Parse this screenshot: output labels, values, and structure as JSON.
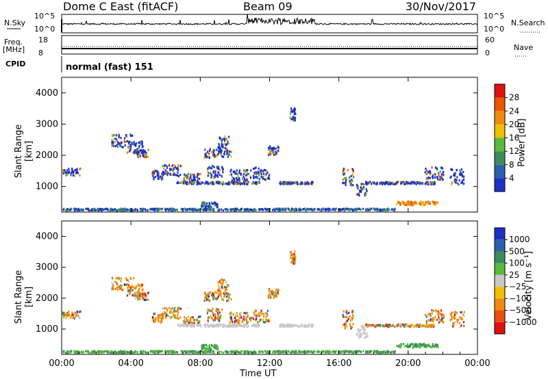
{
  "header": {
    "station": "Dome C East (fitACF)",
    "beam": "Beam 09",
    "date": "30/Nov/2017"
  },
  "strip_labels": {
    "nsky": "N.Sky",
    "nsky_hi": "10^5",
    "nsky_lo": "10^0",
    "nsearch": "N.Search",
    "nsearch_hi": "10^5",
    "nsearch_lo": "10^0",
    "freq": "Freq.",
    "freq_unit": "[MHz]",
    "freq_hi": "18",
    "freq_lo": "8",
    "nave": "Nave",
    "nave_hi": "60",
    "nave_lo": "0",
    "cpid": "CPID",
    "cpid_value": "normal (fast) 151"
  },
  "colors": {
    "power": [
      "#1e2fc8",
      "#2d5fae",
      "#3c8c5a",
      "#58b840",
      "#f0c000",
      "#ef8a10",
      "#ee5500",
      "#e01010"
    ],
    "velocity": [
      "#e01010",
      "#ee4d10",
      "#ef8a10",
      "#f0c000",
      "#c8c8c8",
      "#58b840",
      "#3c8c5a",
      "#2d5fae",
      "#1e2fc8"
    ]
  },
  "chart_data": [
    {
      "type": "heatmap",
      "name": "power",
      "xlabel": "Time UT",
      "ylabel": "Slant Range [km]",
      "x_ticks": [
        "00:00",
        "04:00",
        "08:00",
        "12:00",
        "16:00",
        "20:00",
        "00:00"
      ],
      "y_ticks": [
        "1000",
        "2000",
        "3000",
        "4000"
      ],
      "ylim": [
        180,
        4500
      ],
      "colorbar_label": "Power [dB]",
      "colorbar_ticks": [
        "4",
        "8",
        "12",
        "16",
        "20",
        "24",
        "28"
      ],
      "colorbar_range": [
        0,
        32
      ]
    },
    {
      "type": "heatmap",
      "name": "velocity",
      "xlabel": "Time UT",
      "ylabel": "Slant Range [km]",
      "x_ticks": [
        "00:00",
        "04:00",
        "08:00",
        "12:00",
        "16:00",
        "20:00",
        "00:00"
      ],
      "y_ticks": [
        "1000",
        "2000",
        "3000",
        "4000"
      ],
      "ylim": [
        180,
        4500
      ],
      "colorbar_label": "Velocity [m s⁻¹]",
      "colorbar_ticks": [
        "1000",
        "500",
        "100",
        "25",
        "−25",
        "−100",
        "−500",
        "−1000"
      ]
    }
  ]
}
